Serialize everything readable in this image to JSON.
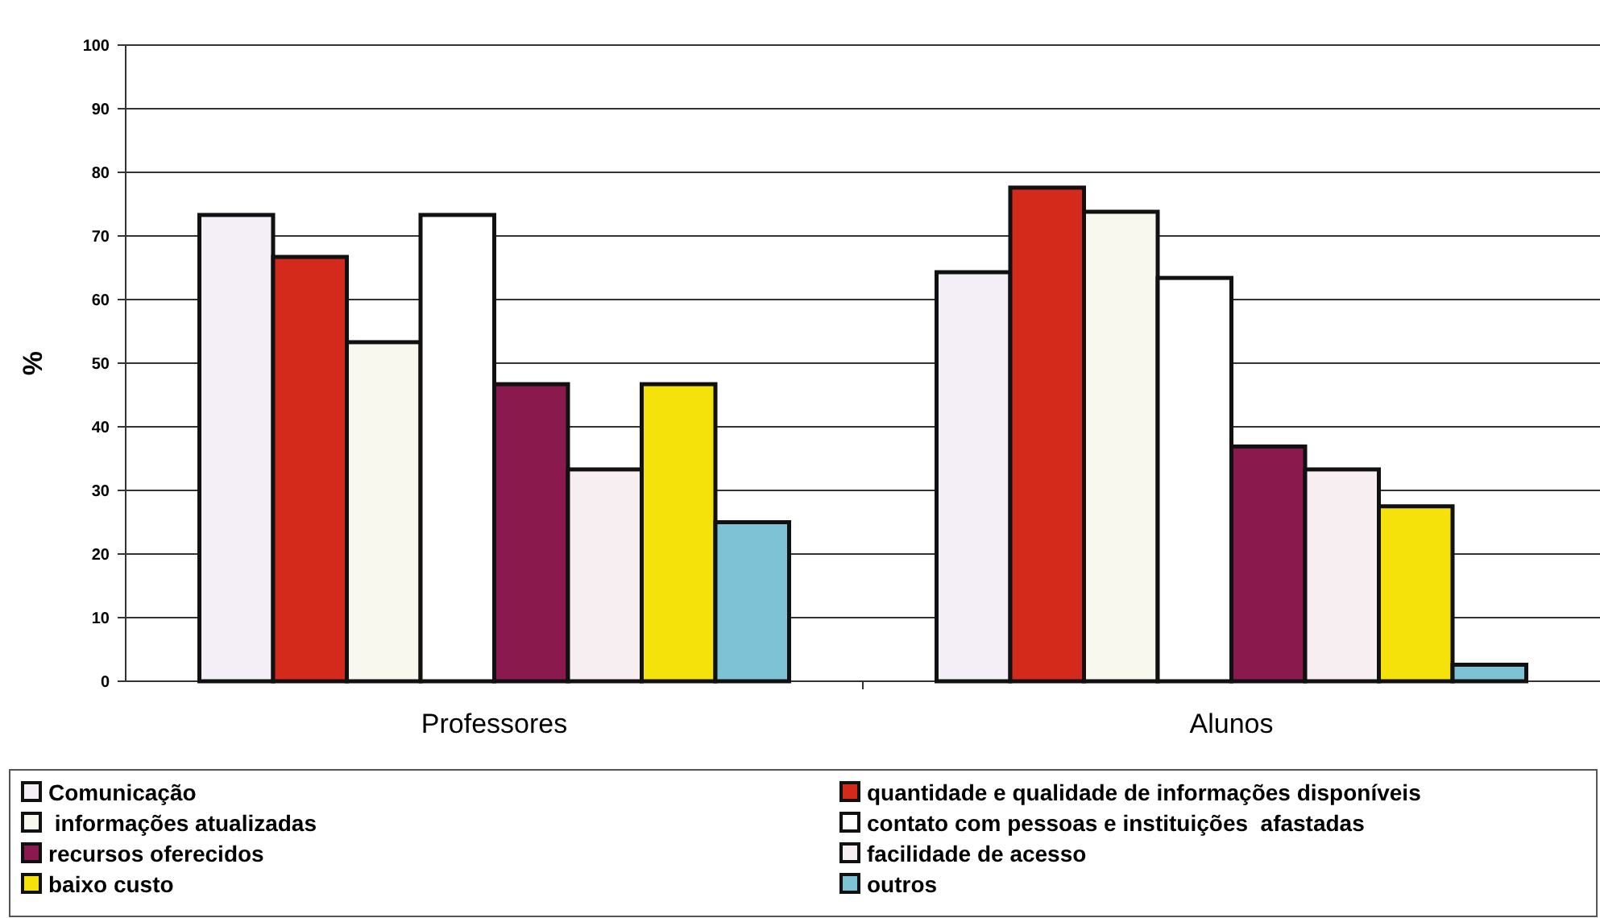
{
  "chart_data": {
    "type": "bar",
    "ylabel": "%",
    "categories": [
      "Professores",
      "Alunos"
    ],
    "ylim": [
      0,
      100
    ],
    "yticks": [
      0,
      10,
      20,
      30,
      40,
      50,
      60,
      70,
      80,
      90,
      100
    ],
    "grid": "y",
    "legend": "bottom",
    "series": [
      {
        "name": "Comunicação",
        "color": "#f4eef6",
        "values": [
          73.3,
          64.3
        ]
      },
      {
        "name": "quantidade e qualidade de informações disponíveis",
        "color": "#d42a1c",
        "values": [
          66.7,
          77.6
        ]
      },
      {
        "name": " informações atualizadas",
        "color": "#f8f8ee",
        "values": [
          53.3,
          73.8
        ]
      },
      {
        "name": "contato com pessoas e instituições  afastadas",
        "color": "#ffffff",
        "values": [
          73.3,
          63.4
        ]
      },
      {
        "name": "recursos oferecidos",
        "color": "#8a1a4e",
        "values": [
          46.7,
          36.9
        ]
      },
      {
        "name": "facilidade de acesso",
        "color": "#f6eef0",
        "values": [
          33.3,
          33.3
        ]
      },
      {
        "name": "baixo custo",
        "color": "#f5e20a",
        "values": [
          46.7,
          27.5
        ]
      },
      {
        "name": "outros",
        "color": "#7ec2d6",
        "values": [
          25.0,
          2.6
        ]
      }
    ]
  }
}
